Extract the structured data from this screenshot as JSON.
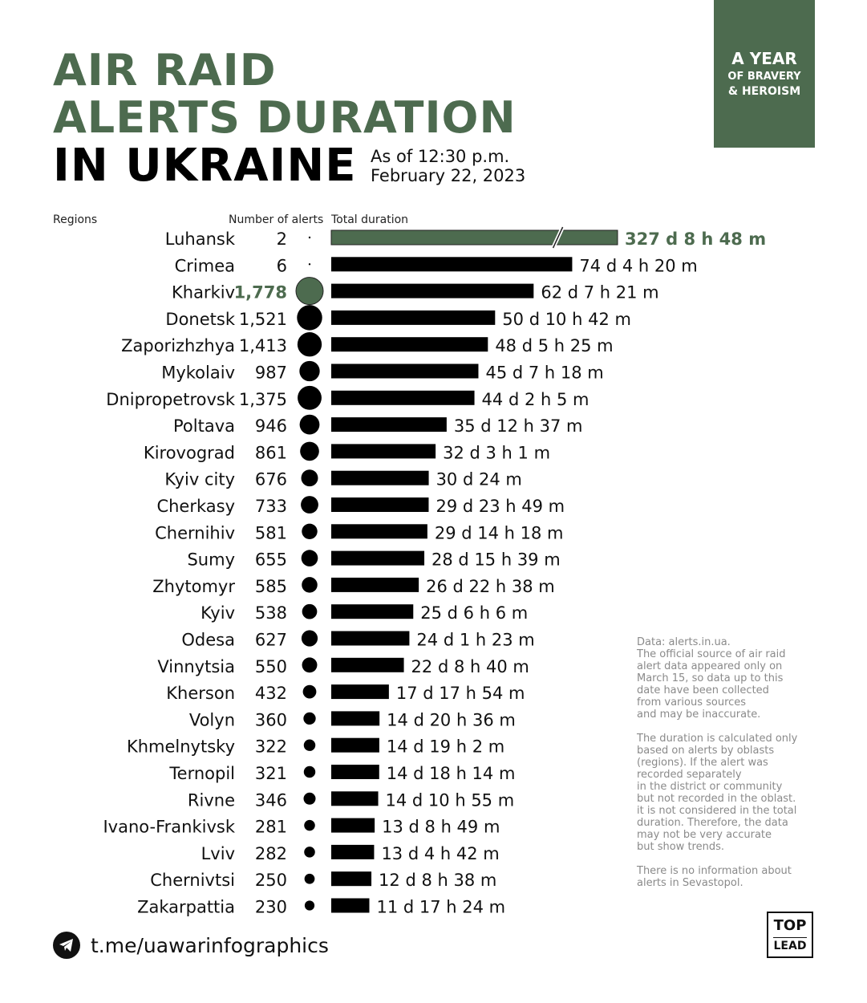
{
  "title": {
    "line1": "AIR RAID",
    "line2": "ALERTS DURATION",
    "line3": "IN UKRAINE",
    "asof_line1": "As of 12:30 p.m.",
    "asof_line2": "February 22, 2023"
  },
  "badge": {
    "line1": "A YEAR",
    "line2": "OF BRAVERY",
    "line3": "& HEROISM"
  },
  "columns": {
    "regions": "Regions",
    "alerts": "Number of alerts",
    "duration": "Total duration"
  },
  "colors": {
    "accent": "#4d6b4f",
    "bar": "#000000",
    "note": "#8a8a8a"
  },
  "chart_data": {
    "type": "bar",
    "orientation": "horizontal",
    "broken_axis_category": "Luhansk",
    "highlight_alerts_category": "Kharkiv",
    "categories": [
      "Luhansk",
      "Crimea",
      "Kharkiv",
      "Donetsk",
      "Zaporizhzhya",
      "Mykolaiv",
      "Dnipropetrovsk",
      "Poltava",
      "Kirovograd",
      "Kyiv city",
      "Cherkasy",
      "Chernihiv",
      "Sumy",
      "Zhytomyr",
      "Kyiv",
      "Odesa",
      "Vinnytsia",
      "Kherson",
      "Volyn",
      "Khmelnytsky",
      "Ternopil",
      "Rivne",
      "Ivano-Frankivsk",
      "Lviv",
      "Chernivtsi",
      "Zakarpattia"
    ],
    "alerts": [
      2,
      6,
      1778,
      1521,
      1413,
      987,
      1375,
      946,
      861,
      676,
      733,
      581,
      655,
      585,
      538,
      627,
      550,
      432,
      360,
      322,
      321,
      346,
      281,
      282,
      250,
      230
    ],
    "alerts_labels": [
      "2",
      "6",
      "1,778",
      "1,521",
      "1,413",
      "987",
      "1,375",
      "946",
      "861",
      "676",
      "733",
      "581",
      "655",
      "585",
      "538",
      "627",
      "550",
      "432",
      "360",
      "322",
      "321",
      "346",
      "281",
      "282",
      "250",
      "230"
    ],
    "duration_days": [
      327.367,
      74.181,
      62.306,
      50.446,
      48.226,
      45.304,
      44.087,
      35.526,
      32.126,
      30.017,
      29.992,
      29.596,
      28.652,
      26.943,
      25.254,
      24.057,
      22.361,
      17.746,
      14.858,
      14.793,
      14.76,
      14.455,
      13.367,
      13.196,
      12.36,
      11.725
    ],
    "duration_labels": [
      "327 d 8 h 48 m",
      "74 d 4 h 20 m",
      "62 d 7 h 21 m",
      "50 d 10 h 42 m",
      "48 d 5 h 25 m",
      "45 d 7 h 18 m",
      "44 d 2 h 5 m",
      "35 d 12 h 37 m",
      "32 d 3 h 1 m",
      "30 d 24 m",
      "29 d 23 h 49 m",
      "29 d 14 h 18 m",
      "28 d 15 h 39 m",
      "26 d 22 h 38 m",
      "25 d 6 h 6 m",
      "24 d 1 h 23 m",
      "22 d 8 h 40 m",
      "17 d 17 h 54 m",
      "14 d 20 h 36 m",
      "14 d 19 h 2 m",
      "14 d 18 h 14 m",
      "14 d 10 h 55 m",
      "13 d 8 h 49 m",
      "13 d 4 h 42 m",
      "12 d 8 h 38 m",
      "11 d 17 h 24 m"
    ]
  },
  "notes": {
    "source": "Data: alerts.in.ua.\nThe official source of air raid\nalert data appeared only on\nMarch 15, so data up to this\ndate have been collected\nfrom various sources\nand may be inaccurate.",
    "method": "The duration is calculated only\nbased on alerts by oblasts\n(regions). If the alert was\nrecorded separately\nin the district or community\nbut not recorded in the oblast.\nit is not considered in the total\nduration. Therefore, the data\nmay not be very accurate\nbut show trends.",
    "sevastopol": "There is no information about\nalerts in Sevastopol."
  },
  "footer": {
    "link": "t.me/uawarinfographics",
    "logo_top": "TOP",
    "logo_bottom": "LEAD"
  }
}
